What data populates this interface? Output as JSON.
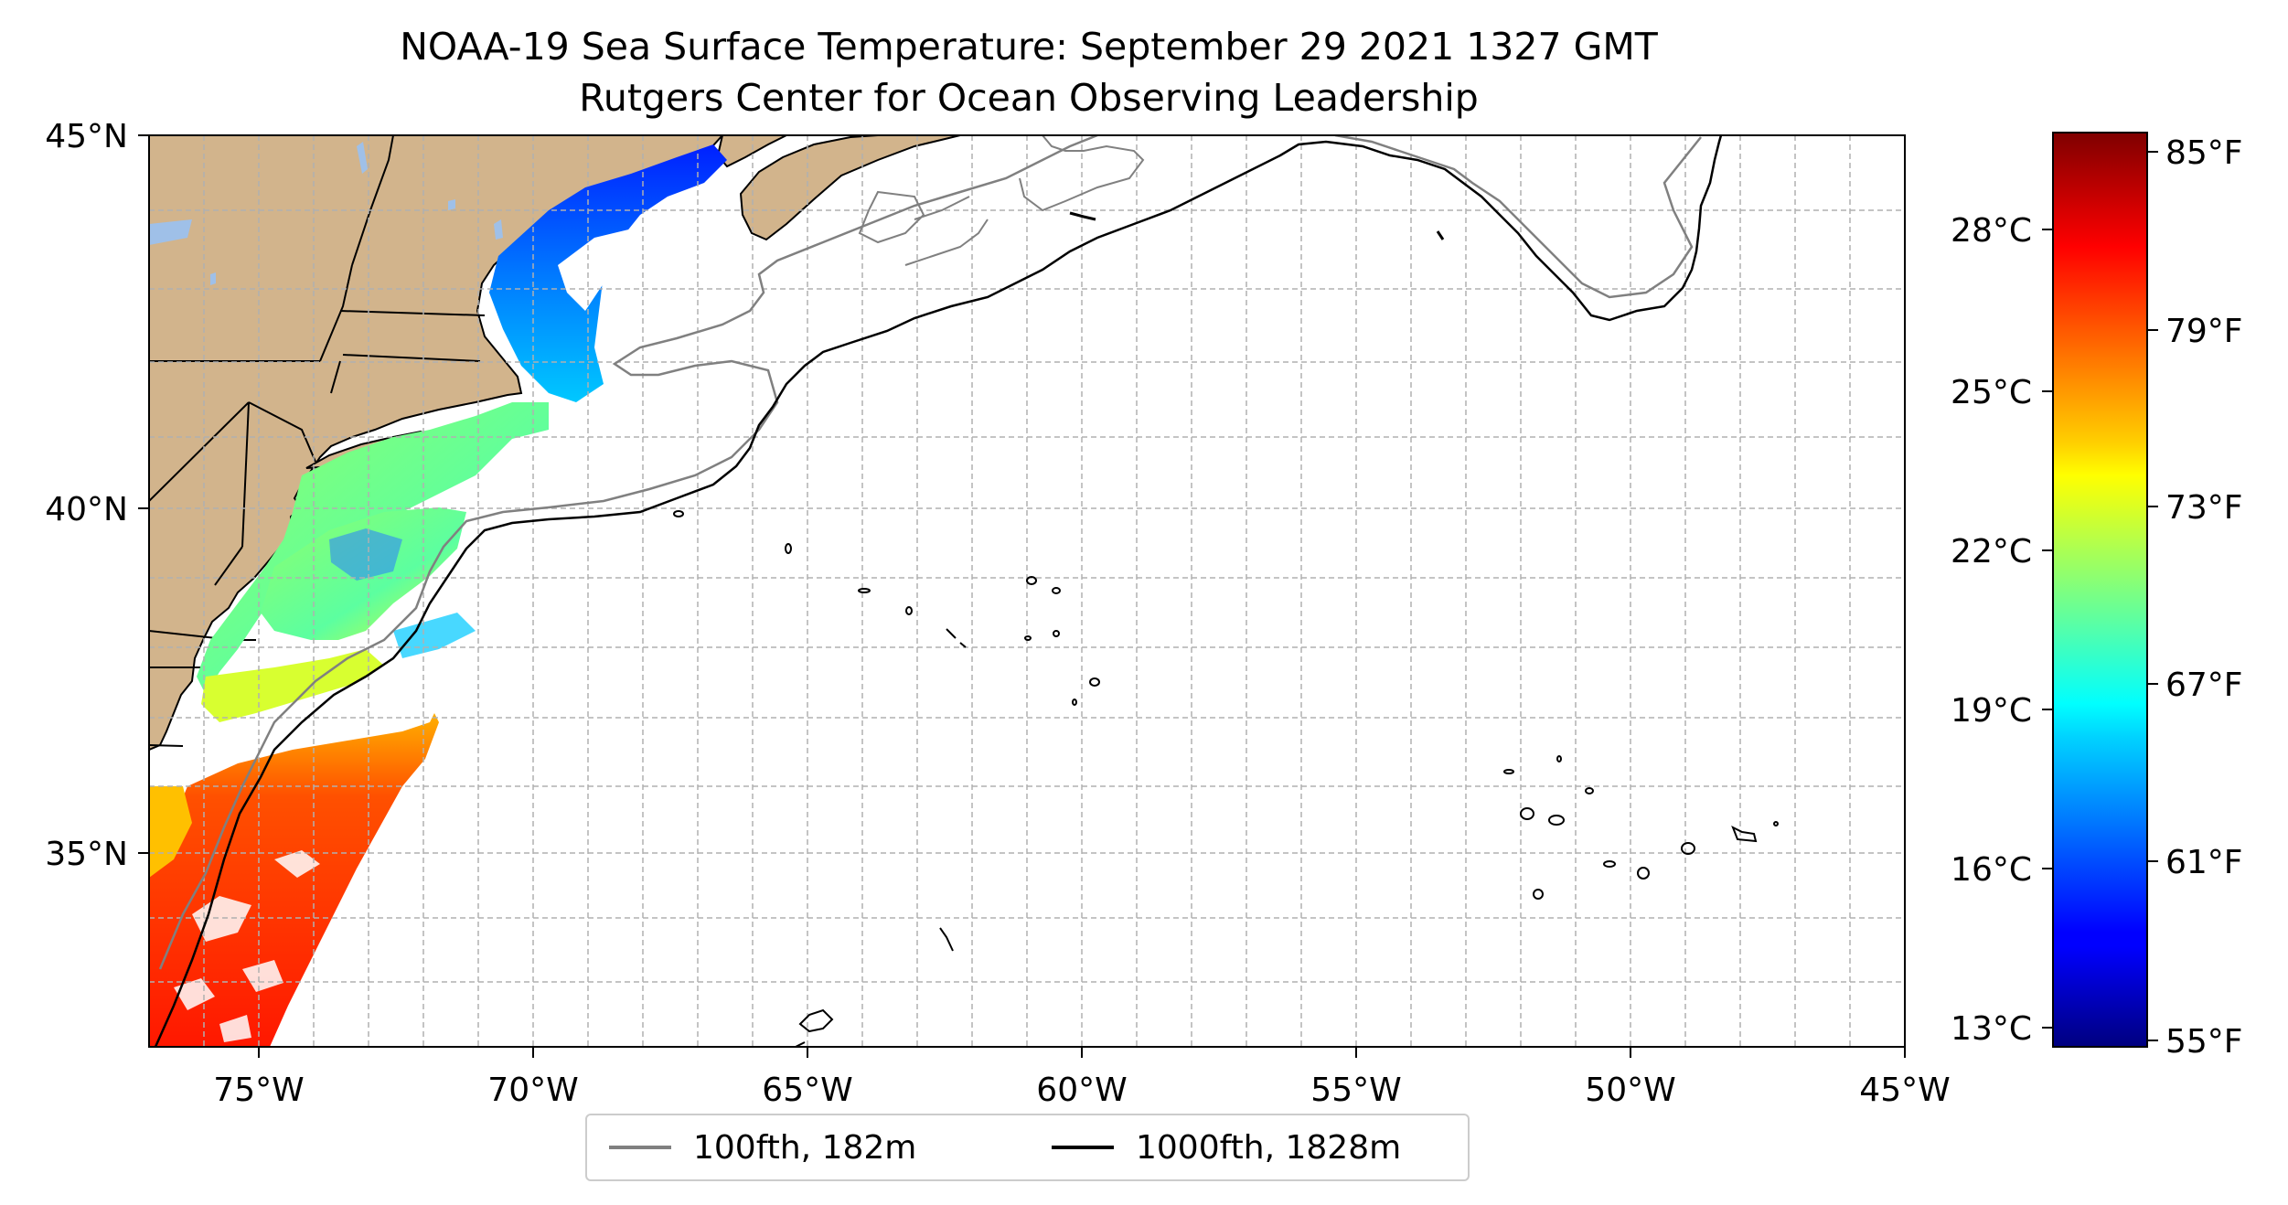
{
  "title": "NOAA-19 Sea Surface Temperature: September 29 2021 1327 GMT",
  "subtitle": "Rutgers Center for Ocean Observing Leadership",
  "map": {
    "lon_range": [
      -77,
      -45
    ],
    "lat_range": [
      31.8,
      45
    ],
    "lon_ticks": [
      "75°W",
      "70°W",
      "65°W",
      "60°W",
      "55°W",
      "50°W",
      "45°W"
    ],
    "lat_ticks": [
      "45°N",
      "40°N",
      "35°N"
    ],
    "land_color": "#d2b48c",
    "grid": "dashed, 1° spacing",
    "lakes_color": "#9fc0e8"
  },
  "colorbar": {
    "colormap": "jet",
    "celsius_ticks": [
      "28°C",
      "25°C",
      "22°C",
      "19°C",
      "16°C",
      "13°C"
    ],
    "fahrenheit_ticks": [
      "85°F",
      "79°F",
      "73°F",
      "67°F",
      "61°F",
      "55°F"
    ],
    "range_f": [
      55,
      86
    ]
  },
  "legend": {
    "items": [
      {
        "label": "100fth, 182m",
        "color": "#808080"
      },
      {
        "label": "1000fth, 1828m",
        "color": "#000000"
      }
    ]
  }
}
